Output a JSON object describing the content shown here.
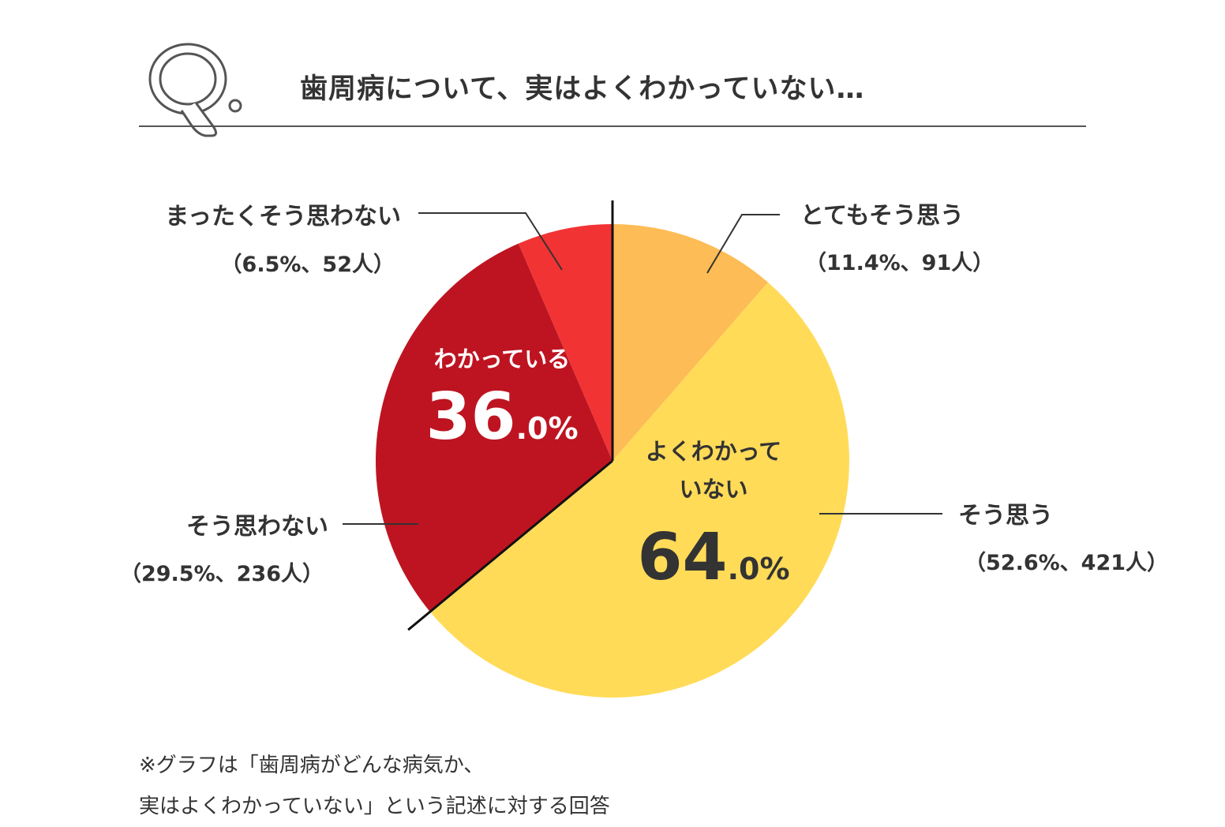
{
  "header": {
    "q_letter": "Q",
    "question": "歯周病について、実はよくわかっていない…"
  },
  "chart_data": {
    "type": "pie",
    "title": "歯周病について、実はよくわかっていない…",
    "start": "12 o'clock, clockwise",
    "slices": [
      {
        "label": "とてもそう思う",
        "percent_text": "（11.4%、91人）",
        "value": 11.4,
        "count": 91,
        "color": "#FDBC55"
      },
      {
        "label": "そう思う",
        "percent_text": "（52.6%、421人）",
        "value": 52.6,
        "count": 421,
        "color": "#FFDB58"
      },
      {
        "label": "そう思わない",
        "percent_text": "（29.5%、236人）",
        "value": 29.5,
        "count": 236,
        "color": "#BE1421"
      },
      {
        "label": "まったくそう思わない",
        "percent_text": "（6.5%、52人）",
        "value": 6.5,
        "count": 52,
        "color": "#F13333"
      }
    ],
    "groups": [
      {
        "label_lines": [
          "よくわかって",
          "いない"
        ],
        "value_main": "64",
        "value_suffix": ".0%",
        "value": 64.0,
        "text_color": "#333333"
      },
      {
        "label_lines": [
          "わかっている"
        ],
        "value_main": "36",
        "value_suffix": ".0%",
        "value": 36.0,
        "text_color": "#ffffff"
      }
    ],
    "divider_color": "#111111",
    "leader_color": "#333333"
  },
  "footnote": {
    "lines": [
      "※グラフは「歯周病がどんな病気か、",
      "実はよくわかっていない」という記述に対する回答"
    ]
  }
}
